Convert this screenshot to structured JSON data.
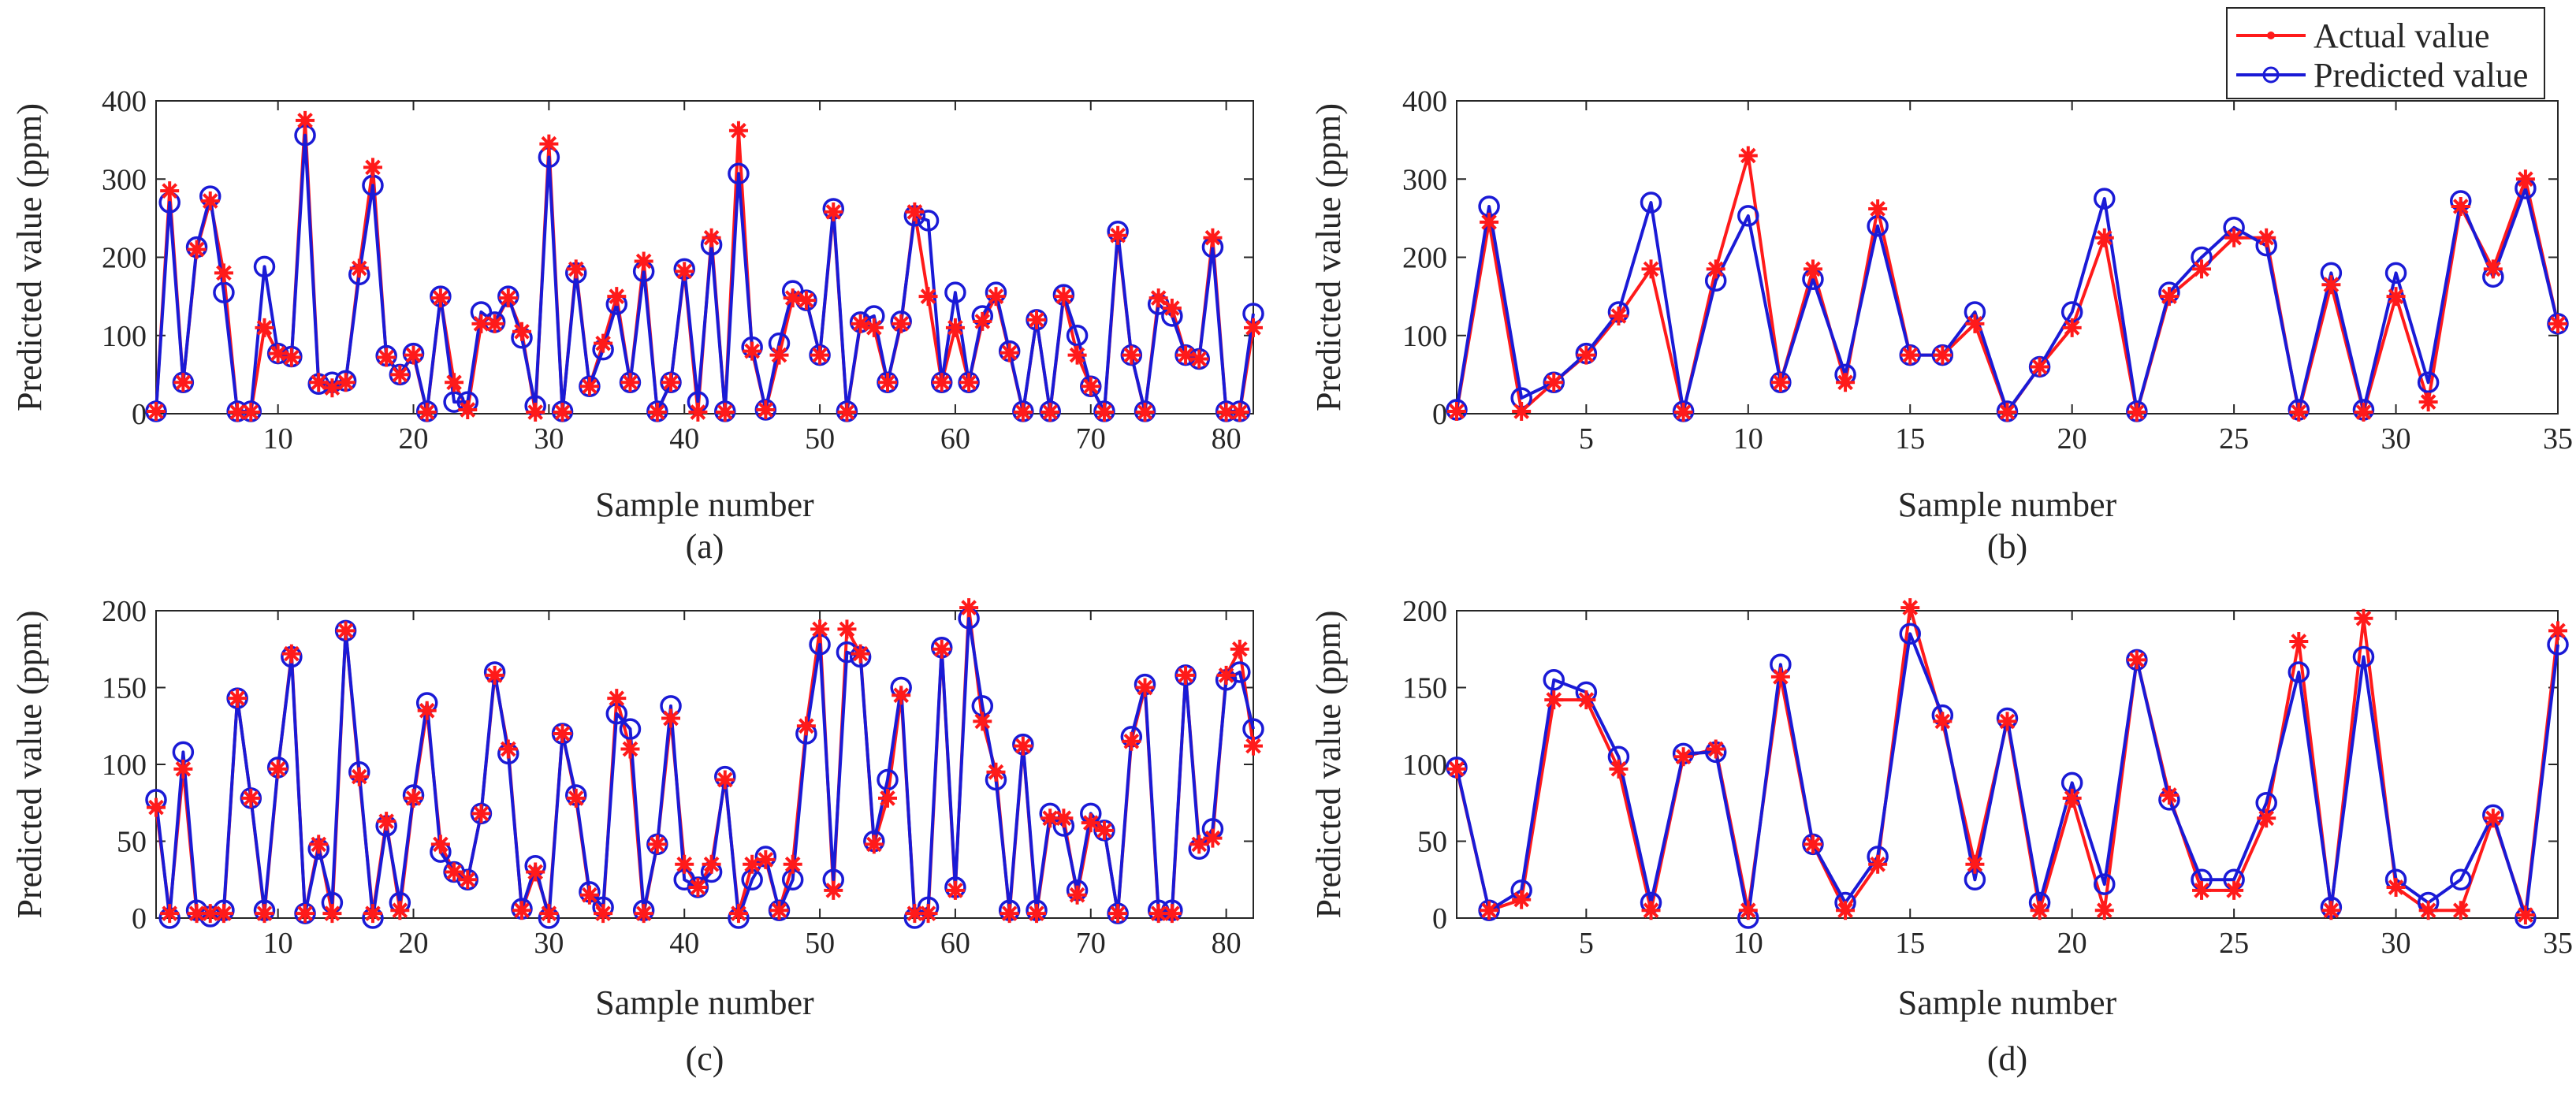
{
  "legend": {
    "actual_label": "Actual value",
    "predicted_label": "Predicted value"
  },
  "colors": {
    "actual": "#ff1a1a",
    "predicted": "#1a1ad6"
  },
  "chart_data": [
    {
      "panel": "a",
      "caption": "(a)",
      "type": "line",
      "xlabel": "Sample number",
      "ylabel": "Predicted value (ppm)",
      "xlim": [
        1,
        82
      ],
      "ylim": [
        0,
        400
      ],
      "xticks": [
        10,
        20,
        30,
        40,
        50,
        60,
        70,
        80
      ],
      "yticks": [
        0,
        100,
        200,
        300,
        400
      ],
      "x_start": 1,
      "series": [
        {
          "name": "Actual value",
          "values": [
            3,
            285,
            40,
            210,
            272,
            180,
            2,
            2,
            110,
            77,
            72,
            375,
            40,
            33,
            40,
            186,
            315,
            72,
            50,
            75,
            2,
            148,
            40,
            5,
            115,
            115,
            148,
            105,
            2,
            345,
            2,
            185,
            35,
            90,
            150,
            40,
            195,
            2,
            40,
            182,
            2,
            225,
            2,
            362,
            80,
            5,
            75,
            148,
            145,
            75,
            258,
            2,
            115,
            110,
            40,
            115,
            258,
            150,
            40,
            110,
            40,
            118,
            150,
            78,
            2,
            120,
            2,
            150,
            75,
            35,
            2,
            228,
            75,
            2,
            148,
            135,
            75,
            70,
            225,
            2,
            2,
            110
          ]
        },
        {
          "name": "Predicted value",
          "values": [
            3,
            270,
            40,
            213,
            278,
            155,
            3,
            3,
            188,
            77,
            73,
            356,
            38,
            40,
            42,
            178,
            292,
            74,
            50,
            77,
            3,
            150,
            15,
            15,
            130,
            117,
            150,
            97,
            10,
            328,
            3,
            180,
            35,
            82,
            140,
            40,
            182,
            3,
            40,
            185,
            15,
            216,
            3,
            307,
            85,
            5,
            90,
            157,
            145,
            75,
            262,
            3,
            117,
            125,
            40,
            118,
            253,
            247,
            40,
            155,
            40,
            125,
            155,
            80,
            3,
            120,
            3,
            152,
            100,
            35,
            3,
            233,
            75,
            3,
            140,
            125,
            75,
            70,
            213,
            3,
            3,
            128
          ]
        }
      ]
    },
    {
      "panel": "b",
      "caption": "(b)",
      "type": "line",
      "xlabel": "Sample number",
      "ylabel": "Predicted value (ppm)",
      "xlim": [
        1,
        35
      ],
      "ylim": [
        0,
        400
      ],
      "xticks": [
        5,
        10,
        15,
        20,
        25,
        30,
        35
      ],
      "yticks": [
        0,
        100,
        200,
        300,
        400
      ],
      "x_start": 1,
      "series": [
        {
          "name": "Actual value",
          "values": [
            3,
            245,
            3,
            40,
            75,
            125,
            185,
            2,
            185,
            330,
            40,
            185,
            40,
            262,
            75,
            75,
            115,
            2,
            60,
            110,
            225,
            2,
            150,
            185,
            225,
            225,
            2,
            165,
            2,
            150,
            15,
            265,
            185,
            300,
            115
          ]
        },
        {
          "name": "Predicted value",
          "values": [
            5,
            265,
            20,
            40,
            77,
            130,
            270,
            3,
            170,
            253,
            40,
            172,
            50,
            240,
            75,
            75,
            130,
            3,
            60,
            130,
            275,
            3,
            155,
            200,
            238,
            215,
            5,
            180,
            5,
            180,
            40,
            272,
            175,
            288,
            115
          ]
        }
      ]
    },
    {
      "panel": "c",
      "caption": "(c)",
      "type": "line",
      "xlabel": "Sample number",
      "ylabel": "Predicted value (ppm)",
      "xlim": [
        1,
        82
      ],
      "ylim": [
        0,
        200
      ],
      "xticks": [
        10,
        20,
        30,
        40,
        50,
        60,
        70,
        80
      ],
      "yticks": [
        0,
        50,
        100,
        150,
        200
      ],
      "x_start": 1,
      "series": [
        {
          "name": "Actual value",
          "values": [
            72,
            3,
            97,
            3,
            3,
            3,
            143,
            78,
            3,
            97,
            172,
            3,
            48,
            3,
            187,
            92,
            3,
            63,
            5,
            78,
            135,
            48,
            30,
            25,
            68,
            158,
            110,
            5,
            30,
            3,
            120,
            78,
            15,
            3,
            143,
            110,
            3,
            48,
            130,
            35,
            20,
            35,
            90,
            3,
            35,
            38,
            5,
            35,
            125,
            188,
            18,
            188,
            172,
            48,
            78,
            145,
            3,
            3,
            175,
            18,
            202,
            128,
            95,
            3,
            112,
            3,
            65,
            65,
            15,
            62,
            57,
            3,
            115,
            150,
            3,
            3,
            158,
            48,
            52,
            158,
            175,
            112
          ]
        },
        {
          "name": "Predicted value",
          "values": [
            77,
            0,
            108,
            5,
            1,
            5,
            143,
            78,
            5,
            98,
            170,
            3,
            45,
            10,
            187,
            95,
            0,
            60,
            10,
            80,
            140,
            43,
            30,
            25,
            68,
            160,
            107,
            6,
            34,
            0,
            120,
            80,
            17,
            7,
            133,
            123,
            5,
            48,
            138,
            25,
            20,
            30,
            92,
            0,
            25,
            40,
            5,
            25,
            120,
            178,
            25,
            173,
            170,
            50,
            90,
            150,
            0,
            7,
            176,
            20,
            195,
            138,
            90,
            5,
            113,
            5,
            68,
            60,
            18,
            68,
            57,
            3,
            118,
            152,
            5,
            5,
            158,
            45,
            58,
            155,
            160,
            123
          ]
        }
      ]
    },
    {
      "panel": "d",
      "caption": "(d)",
      "type": "line",
      "xlabel": "Sample number",
      "ylabel": "Predicted value (ppm)",
      "xlim": [
        1,
        35
      ],
      "ylim": [
        0,
        200
      ],
      "xticks": [
        5,
        10,
        15,
        20,
        25,
        30,
        35
      ],
      "yticks": [
        0,
        50,
        100,
        150,
        200
      ],
      "x_start": 1,
      "series": [
        {
          "name": "Actual value",
          "values": [
            97,
            5,
            12,
            142,
            142,
            97,
            5,
            105,
            110,
            5,
            157,
            48,
            5,
            35,
            202,
            128,
            35,
            128,
            5,
            78,
            5,
            168,
            80,
            18,
            18,
            65,
            180,
            5,
            195,
            20,
            5,
            5,
            65,
            2,
            187
          ]
        },
        {
          "name": "Predicted value",
          "values": [
            98,
            5,
            18,
            155,
            147,
            105,
            10,
            107,
            108,
            0,
            165,
            48,
            10,
            40,
            185,
            132,
            25,
            130,
            10,
            88,
            22,
            168,
            77,
            25,
            25,
            75,
            160,
            7,
            170,
            25,
            10,
            25,
            67,
            0,
            178
          ]
        }
      ]
    }
  ]
}
